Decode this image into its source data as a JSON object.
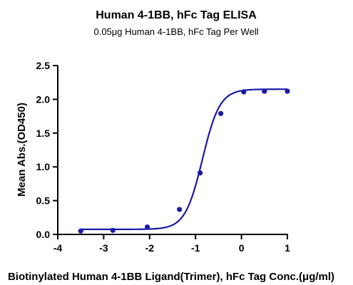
{
  "chart_data": {
    "type": "scatter",
    "title": "Human 4-1BB, hFc Tag ELISA",
    "subtitle": "0.05μg Human 4-1BB, hFc Tag Per Well",
    "xlabel": "Biotinylated Human 4-1BB Ligand(Trimer), hFc Tag Conc.(μg/ml)",
    "ylabel": "Mean Abs.(OD450)",
    "xlim": [
      -4,
      1
    ],
    "ylim": [
      0,
      2.5
    ],
    "x_ticks": [
      "-4",
      "-3",
      "-2",
      "-1",
      "0",
      "1"
    ],
    "y_ticks": [
      "0.0",
      "0.5",
      "1.0",
      "1.5",
      "2.0",
      "2.5"
    ],
    "grid": false,
    "legend": "none",
    "color": "#1a1aa6",
    "series": [
      {
        "x": [
          -3.5,
          -2.8,
          -2.05,
          -1.35,
          -0.9,
          -0.45,
          0.05,
          0.5,
          1.0
        ],
        "values": [
          0.05,
          0.06,
          0.11,
          0.37,
          0.91,
          1.79,
          2.11,
          2.12,
          2.12
        ]
      }
    ],
    "fit": {
      "type": "4PL",
      "bottom": 0.075,
      "top": 2.15,
      "logEC50": -0.85,
      "hill": 2.3
    }
  }
}
